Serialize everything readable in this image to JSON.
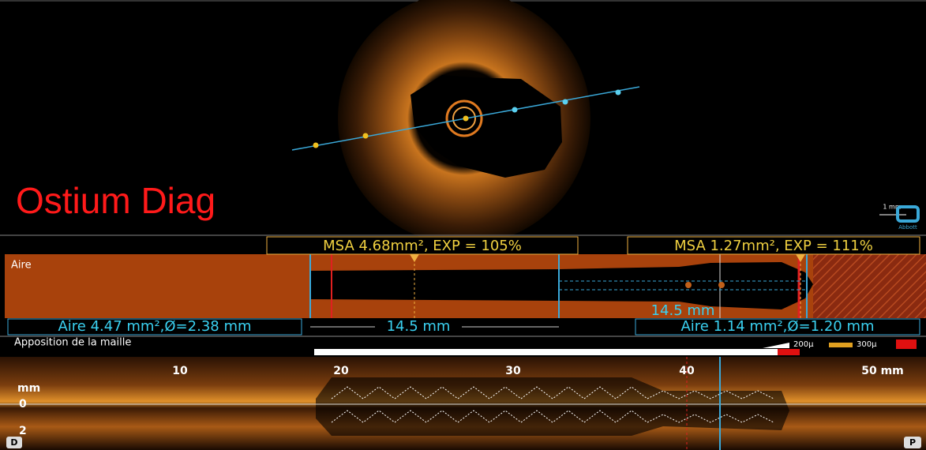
{
  "cross_section": {
    "label": "Ostium Diag",
    "scale_label": "1 mm",
    "logo": "Abbott"
  },
  "area_panel": {
    "msa_left": "MSA 4.68mm², EXP = 105%",
    "msa_right": "MSA 1.27mm², EXP = 111%",
    "title": "Aire",
    "area_left": "Aire 4.47 mm²,Ø=2.38 mm",
    "length_label": "14.5 mm",
    "length_label_right": "14.5 mm",
    "area_right": "Aire 1.14 mm²,Ø=1.20 mm"
  },
  "apposition": {
    "title": "Apposition de la maille",
    "legend": [
      "200µ",
      "300µ"
    ]
  },
  "longitudinal": {
    "ticks": [
      "10",
      "20",
      "30",
      "40",
      "50 mm"
    ],
    "depth_labels": [
      "mm",
      "0",
      "2"
    ],
    "distal": "D",
    "proximal": "P"
  }
}
